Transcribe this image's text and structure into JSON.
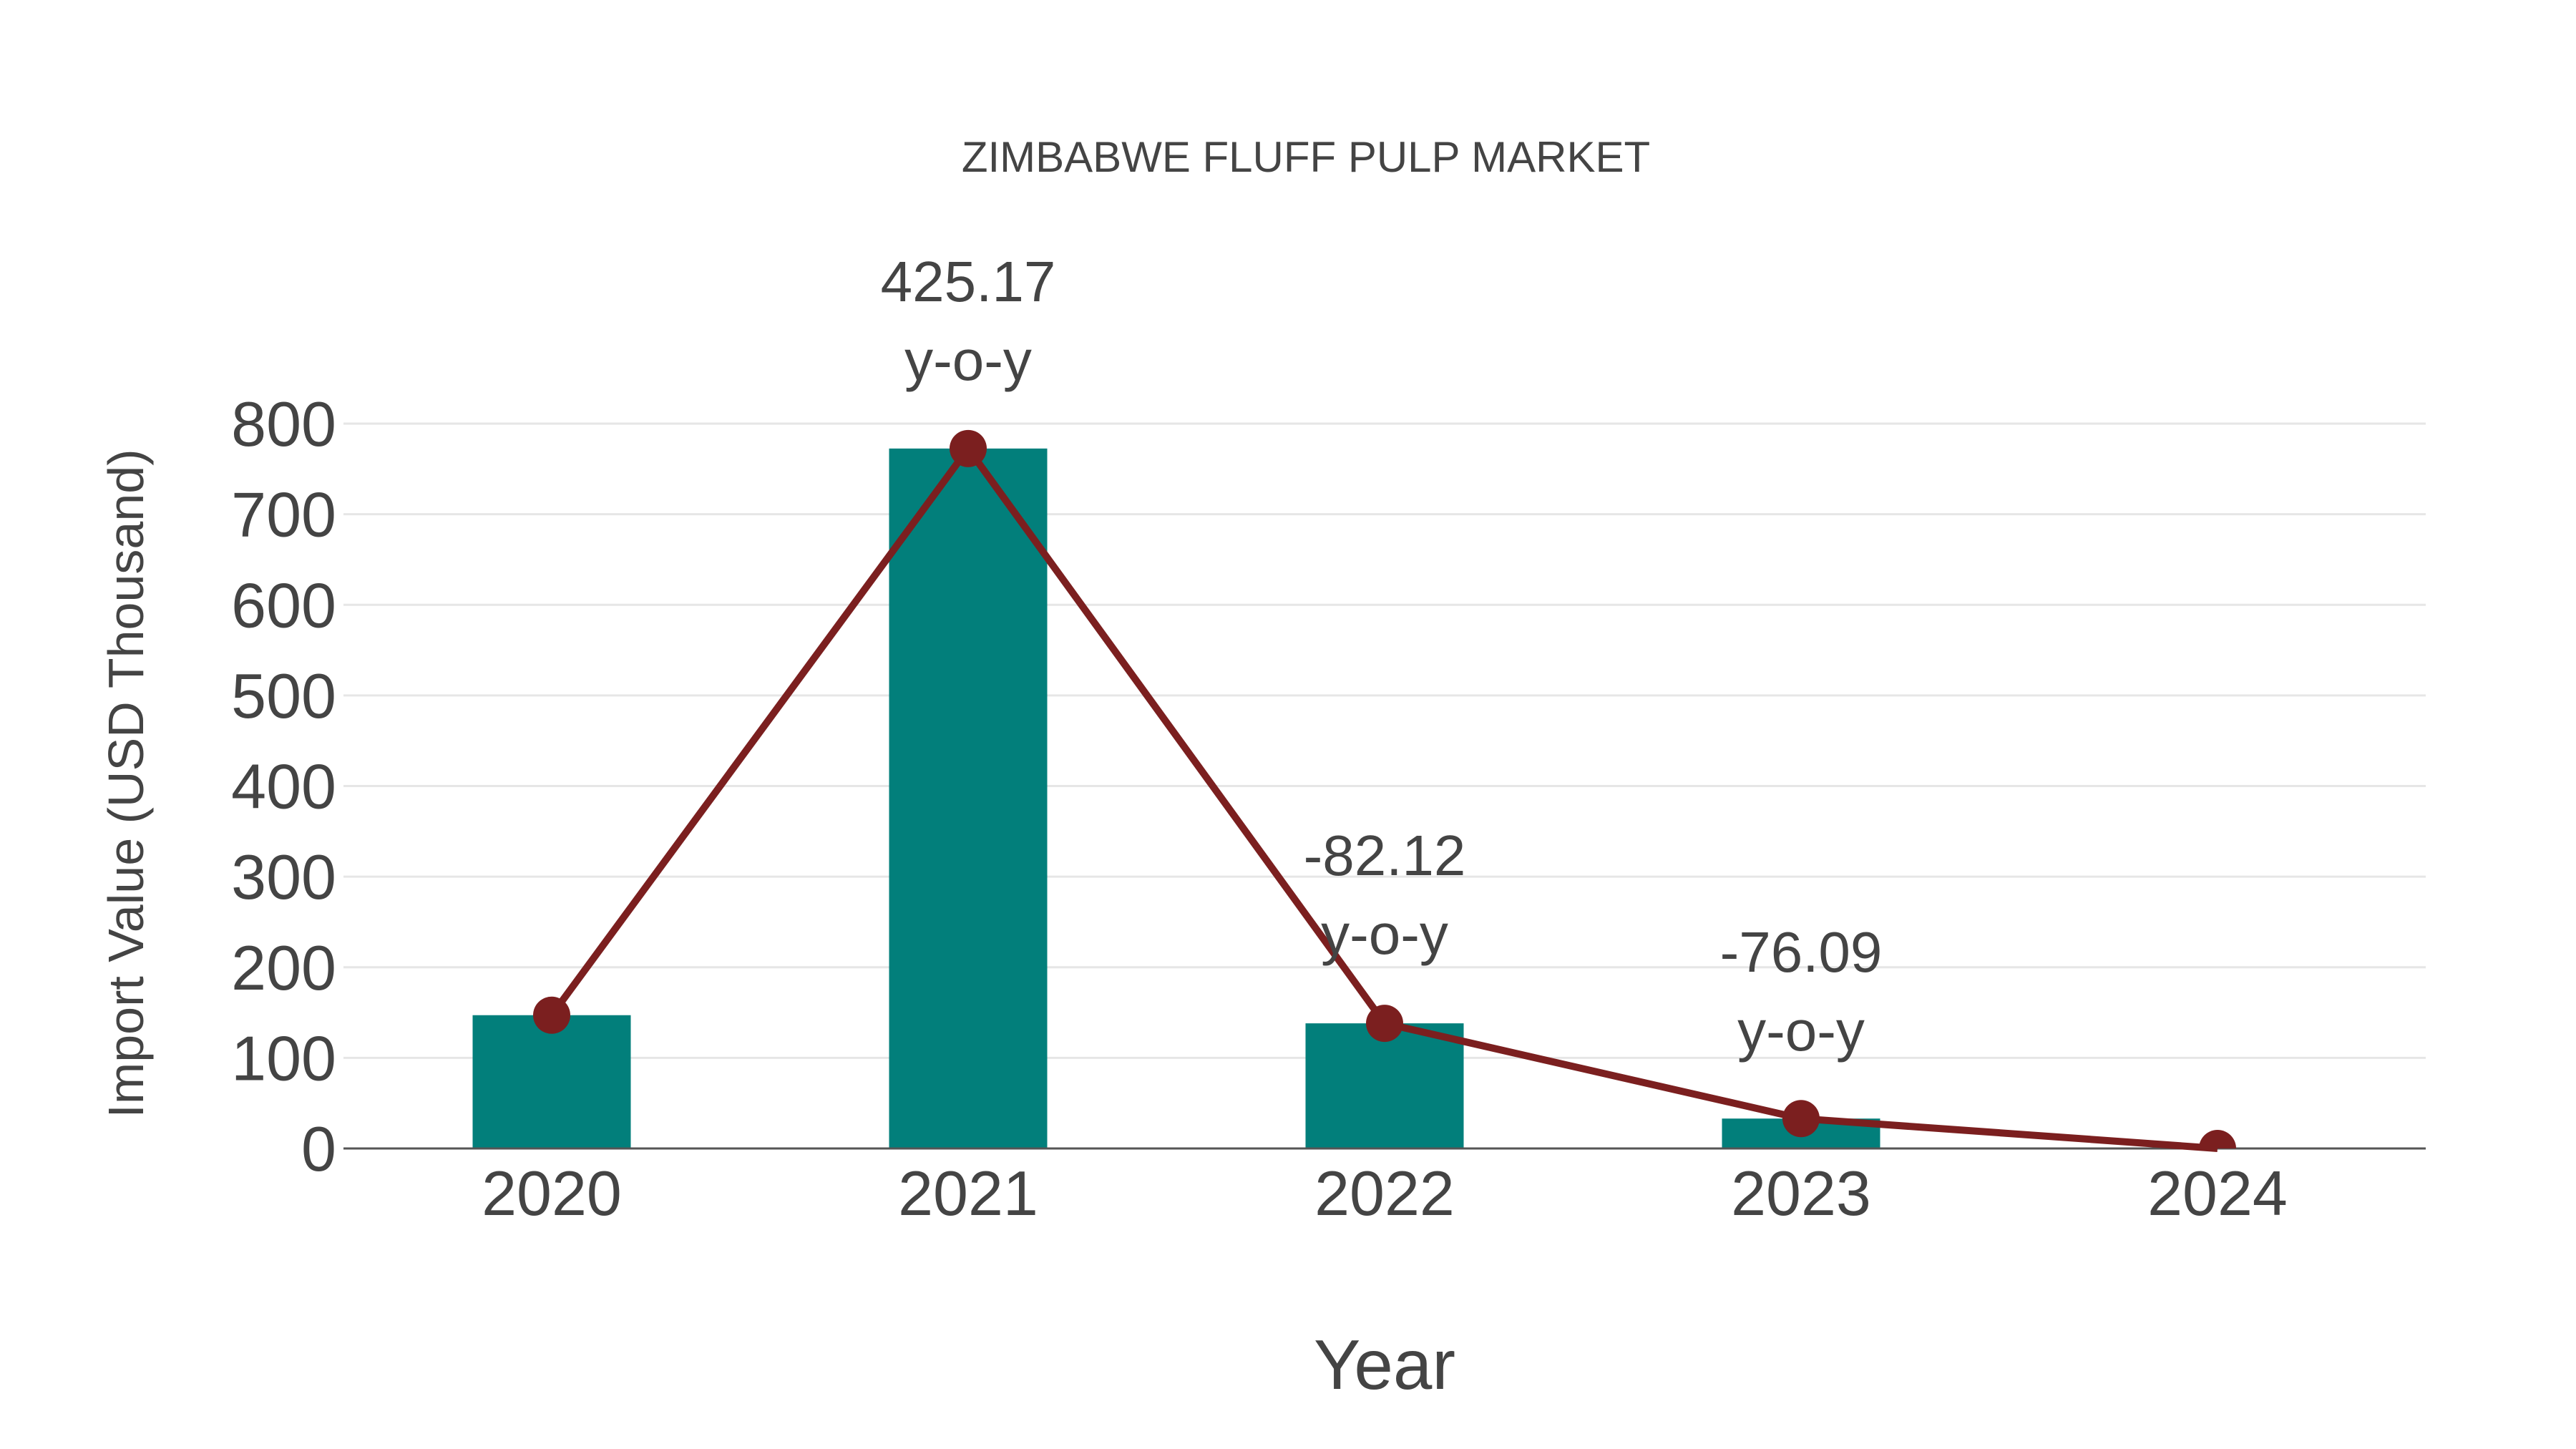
{
  "chart_data": {
    "type": "bar",
    "title": "ZIMBABWE FLUFF PULP MARKET",
    "xlabel": "Year",
    "ylabel": "Import Value (USD Thousand)",
    "categories": [
      "2020",
      "2021",
      "2022",
      "2023",
      "2024"
    ],
    "series": [
      {
        "name": "Import Value",
        "type": "bar",
        "values": [
          147.1,
          772.5,
          138.1,
          33.0,
          0.0
        ]
      },
      {
        "name": "Import Value (trend)",
        "type": "line",
        "values": [
          147.1,
          772.5,
          138.1,
          33.0,
          0.0
        ]
      }
    ],
    "annotations": [
      {
        "category": "2021",
        "value": "425.17",
        "suffix": "y-o-y"
      },
      {
        "category": "2022",
        "value": "-82.12",
        "suffix": "y-o-y"
      },
      {
        "category": "2023",
        "value": "-76.09",
        "suffix": "y-o-y"
      }
    ],
    "yticks": [
      0,
      100,
      200,
      300,
      400,
      500,
      600,
      700,
      800
    ],
    "ylim": [
      0,
      800
    ],
    "grid": true,
    "legend": "none"
  },
  "colors": {
    "bar": "#027f7b",
    "line": "#7b1f1f",
    "grid": "#e6e6e6",
    "axis": "#555555",
    "text": "#444444"
  }
}
